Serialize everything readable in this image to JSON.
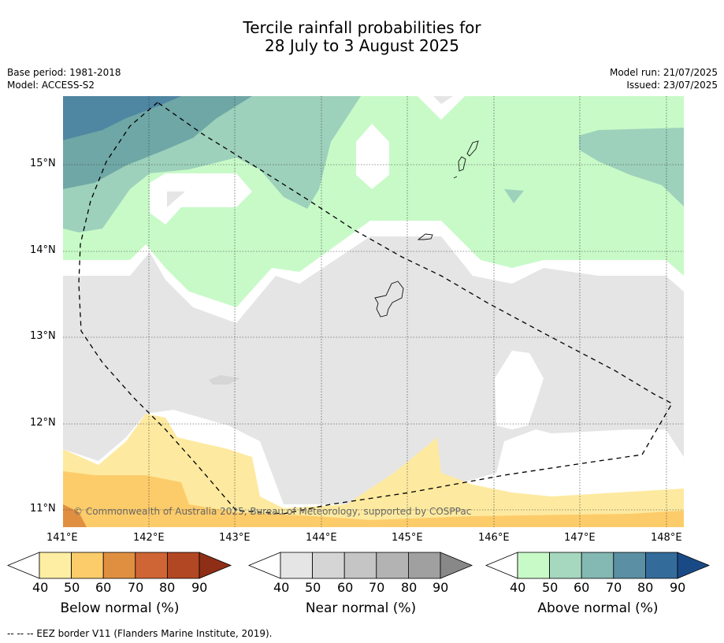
{
  "title": {
    "line1": "Tercile rainfall probabilities for",
    "line2": "28 July to 3 August 2025"
  },
  "meta": {
    "base_period": "Base period: 1981-2018",
    "model": "Model: ACCESS-S2",
    "model_run": "Model run: 21/07/2025",
    "issued": "Issued: 23/07/2025"
  },
  "map": {
    "lon_labels": [
      "141°E",
      "142°E",
      "143°E",
      "144°E",
      "145°E",
      "146°E",
      "147°E",
      "148°E"
    ],
    "lat_labels": [
      "15°N",
      "14°N",
      "13°N",
      "12°N",
      "11°N"
    ],
    "copyright": "© Commonwealth of Australia 2025, Bureau of Meteorology, supported by COSPPac",
    "colors": {
      "near_normal_40": "#e5e5e5",
      "below_normal_40": "#fdeaa0",
      "below_normal_50": "#fdcc6a",
      "below_normal_60": "#e08f41",
      "above_normal_40": "#c8fac8",
      "above_normal_50": "#9dd1bb",
      "above_normal_60": "#6fa7a6",
      "above_normal_70": "#4f86a1"
    }
  },
  "colorbars": [
    {
      "label": "Below normal (%)",
      "ticks": [
        "40",
        "50",
        "60",
        "70",
        "80",
        "90"
      ],
      "colors": [
        "#fdeea4",
        "#fdcc6a",
        "#e08f41",
        "#cf6534",
        "#b24823",
        "#8f2e16"
      ]
    },
    {
      "label": "Near normal (%)",
      "ticks": [
        "40",
        "50",
        "60",
        "70",
        "80",
        "90"
      ],
      "colors": [
        "#e5e5e5",
        "#d5d5d5",
        "#c5c5c5",
        "#b3b3b3",
        "#a0a0a0",
        "#888888"
      ]
    },
    {
      "label": "Above normal (%)",
      "ticks": [
        "40",
        "50",
        "60",
        "70",
        "80",
        "90"
      ],
      "colors": [
        "#c8fac8",
        "#a6d7bf",
        "#84b8b2",
        "#5a8fa4",
        "#336c9b",
        "#1a4a86"
      ]
    }
  ],
  "footnote": "--  --  -- EEZ border V11 (Flanders Marine Institute, 2019)."
}
